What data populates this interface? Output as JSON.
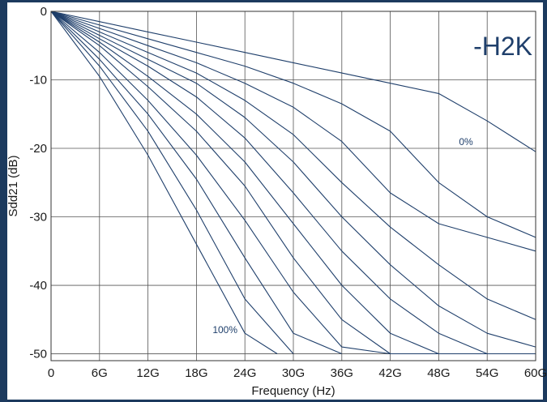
{
  "chart_data": {
    "type": "line",
    "title": "-H2K",
    "xlabel": "Frequency (Hz)",
    "ylabel": "Sdd21 (dB)",
    "xlim": [
      0,
      60
    ],
    "ylim": [
      -51,
      0
    ],
    "grid": true,
    "x_tick_values": [
      0,
      6,
      12,
      18,
      24,
      30,
      36,
      42,
      48,
      54,
      60
    ],
    "x_tick_labels": [
      "0",
      "6G",
      "12G",
      "18G",
      "24G",
      "30G",
      "36G",
      "42G",
      "48G",
      "54G",
      "60G"
    ],
    "y_tick_values": [
      0,
      -10,
      -20,
      -30,
      -40,
      -50
    ],
    "y_tick_labels": [
      "0",
      "-10",
      "-20",
      "-30",
      "-40",
      "-50"
    ],
    "line_color": "#1f3f6b",
    "annotations": [
      {
        "text": "0%",
        "x": 50.5,
        "y": -19.5
      },
      {
        "text": "100%",
        "x": 20,
        "y": -47
      }
    ],
    "series": [
      {
        "x": [
          0,
          6,
          12,
          18,
          24,
          30,
          36,
          42,
          48,
          54,
          60
        ],
        "y": [
          0,
          -1.5,
          -3,
          -4.5,
          -6,
          -7.5,
          -9,
          -10.5,
          -12,
          -16,
          -20.5
        ]
      },
      {
        "x": [
          0,
          6,
          12,
          18,
          24,
          30,
          36,
          42,
          48,
          54,
          60
        ],
        "y": [
          0,
          -2,
          -4,
          -6,
          -8,
          -10.5,
          -13.5,
          -17.5,
          -25,
          -30,
          -33
        ]
      },
      {
        "x": [
          0,
          6,
          12,
          18,
          24,
          30,
          36,
          42,
          48,
          54,
          60
        ],
        "y": [
          0,
          -2.5,
          -5,
          -7.5,
          -10.5,
          -14,
          -19,
          -26.5,
          -31,
          -33,
          -35
        ]
      },
      {
        "x": [
          0,
          6,
          12,
          18,
          24,
          30,
          36,
          42,
          48,
          54,
          60
        ],
        "y": [
          0,
          -3,
          -6,
          -9,
          -13,
          -18,
          -25,
          -31.5,
          -37,
          -42,
          -45
        ]
      },
      {
        "x": [
          0,
          6,
          12,
          18,
          24,
          30,
          36,
          42,
          48,
          54,
          60
        ],
        "y": [
          0,
          -3.5,
          -7,
          -10.5,
          -15.5,
          -22,
          -30,
          -37,
          -43,
          -47,
          -49
        ]
      },
      {
        "x": [
          0,
          6,
          12,
          18,
          24,
          30,
          36,
          42,
          48,
          54,
          60
        ],
        "y": [
          0,
          -4,
          -8,
          -12.5,
          -18.5,
          -26.5,
          -35,
          -42,
          -47,
          -50,
          -50
        ]
      },
      {
        "x": [
          0,
          6,
          12,
          18,
          24,
          30,
          36,
          42,
          48,
          54,
          60
        ],
        "y": [
          0,
          -4.5,
          -9.5,
          -15,
          -22,
          -31,
          -40,
          -47,
          -50,
          -50,
          -50
        ]
      },
      {
        "x": [
          0,
          6,
          12,
          18,
          24,
          30,
          36,
          42,
          48,
          54,
          60
        ],
        "y": [
          0,
          -5,
          -11,
          -17.5,
          -25.5,
          -36,
          -45,
          -50,
          -50,
          -50,
          -50
        ]
      },
      {
        "x": [
          0,
          6,
          12,
          18,
          24,
          30,
          36,
          42
        ],
        "y": [
          0,
          -6,
          -13,
          -21,
          -30.5,
          -41,
          -49,
          -50
        ]
      },
      {
        "x": [
          0,
          6,
          12,
          18,
          24,
          30,
          36
        ],
        "y": [
          0,
          -7,
          -15,
          -24.5,
          -36,
          -47,
          -50
        ]
      },
      {
        "x": [
          0,
          6,
          12,
          18,
          24,
          30
        ],
        "y": [
          0,
          -8,
          -17.5,
          -29,
          -42,
          -50
        ]
      },
      {
        "x": [
          0,
          6,
          12,
          18,
          24,
          28
        ],
        "y": [
          0,
          -9.5,
          -21,
          -34,
          -47,
          -50
        ]
      }
    ]
  }
}
